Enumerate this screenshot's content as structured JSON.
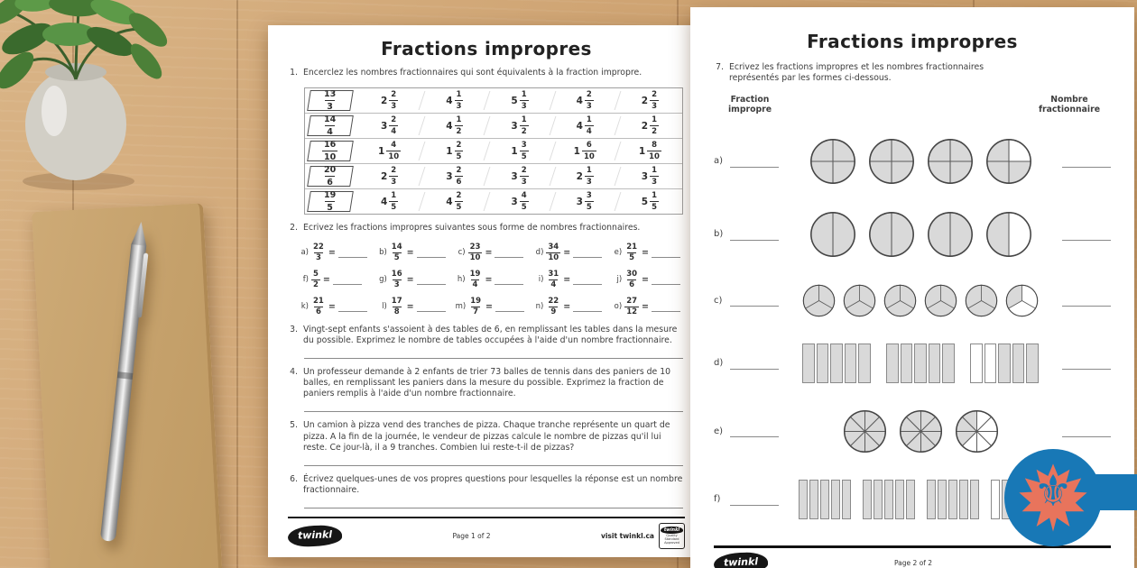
{
  "scene": {
    "colors": {
      "wood": "#cfa473",
      "ribbon": "#1878b6",
      "badge_circle": "#1878b6",
      "maple_leaf": "#e8745c",
      "fleur_de_lis": "#1878b6",
      "shaded_gray": "#d9d9d9"
    },
    "badge": {
      "fleur_glyph": "⚜"
    }
  },
  "page1": {
    "title": "Fractions impropres",
    "q1": {
      "number": "1.",
      "text": "Encerclez les nombres fractionnaires qui sont équivalents à la fraction impropre.",
      "rows": [
        {
          "target": {
            "num": "13",
            "den": "3"
          },
          "options": [
            {
              "whole": "2",
              "num": "2",
              "den": "3"
            },
            {
              "whole": "4",
              "num": "1",
              "den": "3"
            },
            {
              "whole": "5",
              "num": "1",
              "den": "3"
            },
            {
              "whole": "4",
              "num": "2",
              "den": "3"
            },
            {
              "whole": "2",
              "num": "2",
              "den": "3"
            }
          ]
        },
        {
          "target": {
            "num": "14",
            "den": "4"
          },
          "options": [
            {
              "whole": "3",
              "num": "2",
              "den": "4"
            },
            {
              "whole": "4",
              "num": "1",
              "den": "2"
            },
            {
              "whole": "3",
              "num": "1",
              "den": "2"
            },
            {
              "whole": "4",
              "num": "1",
              "den": "4"
            },
            {
              "whole": "2",
              "num": "1",
              "den": "2"
            }
          ]
        },
        {
          "target": {
            "num": "16",
            "den": "10"
          },
          "options": [
            {
              "whole": "1",
              "num": "4",
              "den": "10"
            },
            {
              "whole": "1",
              "num": "2",
              "den": "5"
            },
            {
              "whole": "1",
              "num": "3",
              "den": "5"
            },
            {
              "whole": "1",
              "num": "6",
              "den": "10"
            },
            {
              "whole": "1",
              "num": "8",
              "den": "10"
            }
          ]
        },
        {
          "target": {
            "num": "20",
            "den": "6"
          },
          "options": [
            {
              "whole": "2",
              "num": "2",
              "den": "3"
            },
            {
              "whole": "3",
              "num": "2",
              "den": "6"
            },
            {
              "whole": "3",
              "num": "2",
              "den": "3"
            },
            {
              "whole": "2",
              "num": "1",
              "den": "3"
            },
            {
              "whole": "3",
              "num": "1",
              "den": "3"
            }
          ]
        },
        {
          "target": {
            "num": "19",
            "den": "5"
          },
          "options": [
            {
              "whole": "4",
              "num": "1",
              "den": "5"
            },
            {
              "whole": "4",
              "num": "2",
              "den": "5"
            },
            {
              "whole": "3",
              "num": "4",
              "den": "5"
            },
            {
              "whole": "3",
              "num": "3",
              "den": "5"
            },
            {
              "whole": "5",
              "num": "1",
              "den": "5"
            }
          ]
        }
      ]
    },
    "q2": {
      "number": "2.",
      "text": "Ecrivez les fractions impropres suivantes sous forme de nombres fractionnaires.",
      "equals": "=",
      "items": [
        {
          "label": "a)",
          "num": "22",
          "den": "3"
        },
        {
          "label": "b)",
          "num": "14",
          "den": "5"
        },
        {
          "label": "c)",
          "num": "23",
          "den": "10"
        },
        {
          "label": "d)",
          "num": "34",
          "den": "10"
        },
        {
          "label": "e)",
          "num": "21",
          "den": "5"
        },
        {
          "label": "f)",
          "num": "5",
          "den": "2"
        },
        {
          "label": "g)",
          "num": "16",
          "den": "3"
        },
        {
          "label": "h)",
          "num": "19",
          "den": "4"
        },
        {
          "label": "i)",
          "num": "31",
          "den": "4"
        },
        {
          "label": "j)",
          "num": "30",
          "den": "6"
        },
        {
          "label": "k)",
          "num": "21",
          "den": "6"
        },
        {
          "label": "l)",
          "num": "17",
          "den": "8"
        },
        {
          "label": "m)",
          "num": "19",
          "den": "7"
        },
        {
          "label": "n)",
          "num": "22",
          "den": "9"
        },
        {
          "label": "o)",
          "num": "27",
          "den": "12"
        }
      ]
    },
    "q3": {
      "number": "3.",
      "text": "Vingt-sept enfants s'assoient à des tables de 6, en remplissant les tables dans la mesure du possible. Exprimez le nombre de tables occupées à l'aide d'un nombre fractionnaire."
    },
    "q4": {
      "number": "4.",
      "text": "Un professeur demande à 2 enfants de trier 73 balles de tennis dans des paniers de 10 balles, en remplissant les paniers dans la mesure du possible. Exprimez la fraction de paniers remplis à l'aide d'un nombre fractionnaire."
    },
    "q5": {
      "number": "5.",
      "text": "Un camion à pizza vend des tranches de pizza. Chaque tranche représente un quart de pizza. A la fin de la journée, le vendeur de pizzas calcule le nombre de pizzas qu'il lui reste. Ce jour-là, il a 9 tranches. Combien lui reste-t-il de pizzas?"
    },
    "q6": {
      "number": "6.",
      "text": "Écrivez quelques-unes de vos propres questions pour lesquelles la réponse est un nombre fractionnaire."
    },
    "footer": {
      "logo": "twinkl",
      "page": "Page 1 of 2",
      "visit": "visit twinkl.ca",
      "badge_logo": "twinkl",
      "badge_text": "Quality Standard Approved"
    }
  },
  "page2": {
    "title": "Fractions impropres",
    "q7": {
      "number": "7.",
      "text": "Ecrivez les fractions impropres et les nombres fractionnaires représentés par les formes ci-dessous."
    },
    "col_left": "Fraction\nimpropre",
    "col_right": "Nombre\nfractionnaire",
    "rows": [
      {
        "label": "a)",
        "shape": "circle",
        "divisions": 4,
        "shaded": [
          4,
          4,
          4,
          3
        ],
        "size": 52,
        "gap": 13
      },
      {
        "label": "b)",
        "shape": "circle",
        "divisions": 2,
        "shaded": [
          2,
          2,
          2,
          1
        ],
        "size": 52,
        "gap": 13
      },
      {
        "label": "c)",
        "shape": "circle",
        "divisions": 3,
        "shaded": [
          3,
          3,
          3,
          3,
          3,
          1
        ],
        "size": 37,
        "gap": 8
      },
      {
        "label": "d)",
        "shape": "bar",
        "divisions": 5,
        "shaded": [
          5,
          5,
          3
        ],
        "size": 76,
        "height": 44,
        "gap": 17
      },
      {
        "label": "e)",
        "shape": "circle",
        "divisions": 8,
        "shaded": [
          8,
          8,
          3
        ],
        "size": 49,
        "gap": 13
      },
      {
        "label": "f)",
        "shape": "bar",
        "divisions": 5,
        "shaded": [
          5,
          5,
          5,
          4
        ],
        "size": 58,
        "height": 44,
        "gap": 13
      }
    ],
    "footer": {
      "logo": "twinkl",
      "page": "Page 2 of 2"
    }
  }
}
